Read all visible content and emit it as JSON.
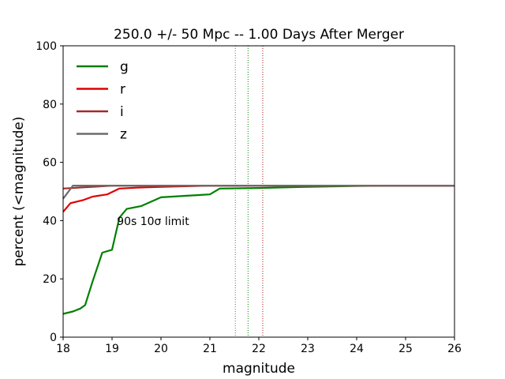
{
  "chart_data": {
    "type": "line",
    "title": "250.0 +/- 50 Mpc  -- 1.00 Days After Merger",
    "xlabel": "magnitude",
    "ylabel": "percent (<magnitude)",
    "xlim": [
      18,
      26
    ],
    "ylim": [
      0,
      100
    ],
    "xticks": [
      18,
      19,
      20,
      21,
      22,
      23,
      24,
      25,
      26
    ],
    "yticks": [
      0,
      20,
      40,
      60,
      80,
      100
    ],
    "grid": false,
    "legend_position": "top-left",
    "annotation": {
      "text": "90s 10σ limit",
      "x": 19.1,
      "y": 38.5
    },
    "limit_lines": [
      {
        "band": "g",
        "x": 21.78,
        "color": "#008000"
      },
      {
        "band": "r",
        "x": 22.08,
        "color": "#e00000"
      },
      {
        "band": "i",
        "x": 22.08,
        "color": "#a52a2a"
      },
      {
        "band": "z",
        "x": 21.52,
        "color": "#6b6b6b"
      }
    ],
    "series": [
      {
        "name": "g",
        "color": "#008000",
        "x": [
          18.0,
          18.2,
          18.35,
          18.45,
          18.6,
          18.8,
          19.0,
          19.15,
          19.3,
          19.6,
          19.8,
          20.0,
          20.5,
          21.0,
          21.2,
          22.0,
          23.0,
          24.0,
          25.0,
          26.0
        ],
        "y": [
          8,
          8.8,
          9.8,
          11,
          19,
          29,
          30,
          41,
          44,
          45,
          46.5,
          48,
          48.5,
          49,
          51,
          51.2,
          51.6,
          51.9,
          52,
          52
        ]
      },
      {
        "name": "r",
        "color": "#e00000",
        "x": [
          18.0,
          18.15,
          18.4,
          18.6,
          18.9,
          19.15,
          19.5,
          20.0,
          20.5,
          21.0,
          22.0,
          23.0,
          24.0,
          25.0,
          26.0
        ],
        "y": [
          43,
          46,
          47,
          48.2,
          49,
          51,
          51.3,
          51.6,
          51.8,
          52,
          52,
          52,
          52,
          52,
          52
        ]
      },
      {
        "name": "i",
        "color": "#a52a2a",
        "x": [
          18.0,
          18.3,
          18.8,
          19.0,
          20.0,
          21.0,
          22.0,
          23.0,
          24.0,
          25.0,
          26.0
        ],
        "y": [
          51,
          51.3,
          51.8,
          52,
          52,
          52,
          52,
          52,
          52,
          52,
          52
        ]
      },
      {
        "name": "z",
        "color": "#6b6b6b",
        "x": [
          18.0,
          18.2,
          18.5,
          19.0,
          20.0,
          21.0,
          22.0,
          23.0,
          24.0,
          25.0,
          26.0
        ],
        "y": [
          47.5,
          52,
          52,
          52,
          52,
          52,
          52,
          52,
          52,
          52,
          52
        ]
      }
    ]
  }
}
